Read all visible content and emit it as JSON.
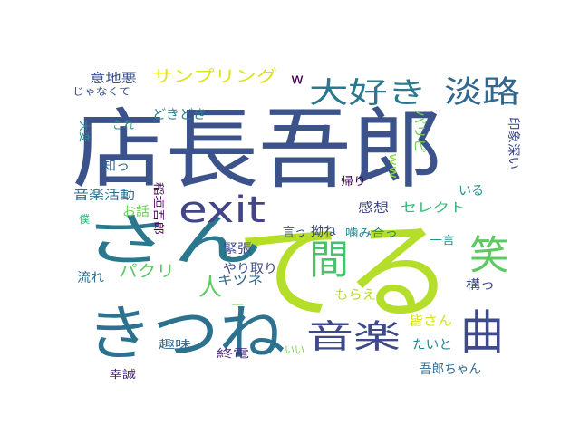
{
  "words": [
    {
      "text": "店長吾郎",
      "color": "#3b528b"
    },
    {
      "text": "てる",
      "color": "#b5de2b"
    },
    {
      "text": "きつね",
      "color": "#2c728e"
    },
    {
      "text": "さん",
      "color": "#2a788e"
    },
    {
      "text": "曲",
      "color": "#3e4a89"
    },
    {
      "text": "間",
      "color": "#4ac16d"
    },
    {
      "text": "笑",
      "color": "#5ec962"
    },
    {
      "text": "exit",
      "color": "#414487"
    },
    {
      "text": "音楽",
      "color": "#3e4989"
    },
    {
      "text": "大好き",
      "color": "#2a788e"
    },
    {
      "text": "淡路",
      "color": "#31688e"
    },
    {
      "text": "パクリ",
      "color": "#5ec962"
    },
    {
      "text": "人",
      "color": "#5ec962"
    },
    {
      "text": "サンプリング",
      "color": "#dde318"
    },
    {
      "text": "w",
      "color": "#440154"
    },
    {
      "text": "意地悪",
      "color": "#3b528b"
    },
    {
      "text": "じゃなくて",
      "color": "#3b528b"
    },
    {
      "text": "どきどき",
      "color": "#26828e"
    },
    {
      "text": "これ",
      "color": "#21918c"
    },
    {
      "text": "大変",
      "color": "#21918c"
    },
    {
      "text": "知っ",
      "color": "#31688e"
    },
    {
      "text": "音楽活動",
      "color": "#2c728e"
    },
    {
      "text": "お話",
      "color": "#6ece58"
    },
    {
      "text": "稲垣吾郎",
      "color": "#440154"
    },
    {
      "text": "僕",
      "color": "#35b779"
    },
    {
      "text": "緊張",
      "color": "#3e4a89"
    },
    {
      "text": "言っ",
      "color": "#3b528b"
    },
    {
      "text": "拗ね",
      "color": "#414487"
    },
    {
      "text": "キツネ",
      "color": "#31688e"
    },
    {
      "text": "やり取り",
      "color": "#3e4989"
    },
    {
      "text": "流れ",
      "color": "#2c728e"
    },
    {
      "text": "趣味",
      "color": "#31688e"
    },
    {
      "text": "幸誠",
      "color": "#482878"
    },
    {
      "text": "終電",
      "color": "#482878"
    },
    {
      "text": "いい",
      "color": "#7ad151"
    },
    {
      "text": "噛み合っ",
      "color": "#26828e"
    },
    {
      "text": "もらえ",
      "color": "#b5de2b"
    },
    {
      "text": "皆さん",
      "color": "#d8e219"
    },
    {
      "text": "たいと",
      "color": "#26828e"
    },
    {
      "text": "吾郎ちゃん",
      "color": "#31688e"
    },
    {
      "text": "構っ",
      "color": "#3e4989"
    },
    {
      "text": "一言",
      "color": "#21918c"
    },
    {
      "text": "感想",
      "color": "#414487"
    },
    {
      "text": "セレクト",
      "color": "#35b779"
    },
    {
      "text": "いる",
      "color": "#21918c"
    },
    {
      "text": "帰り",
      "color": "#440154"
    },
    {
      "text": "ww",
      "color": "#8fd744"
    },
    {
      "text": "パリピ",
      "color": "#6ece58"
    },
    {
      "text": "印象深い",
      "color": "#3e4a89"
    },
    {
      "text": "_",
      "color": "#6ece58"
    }
  ]
}
